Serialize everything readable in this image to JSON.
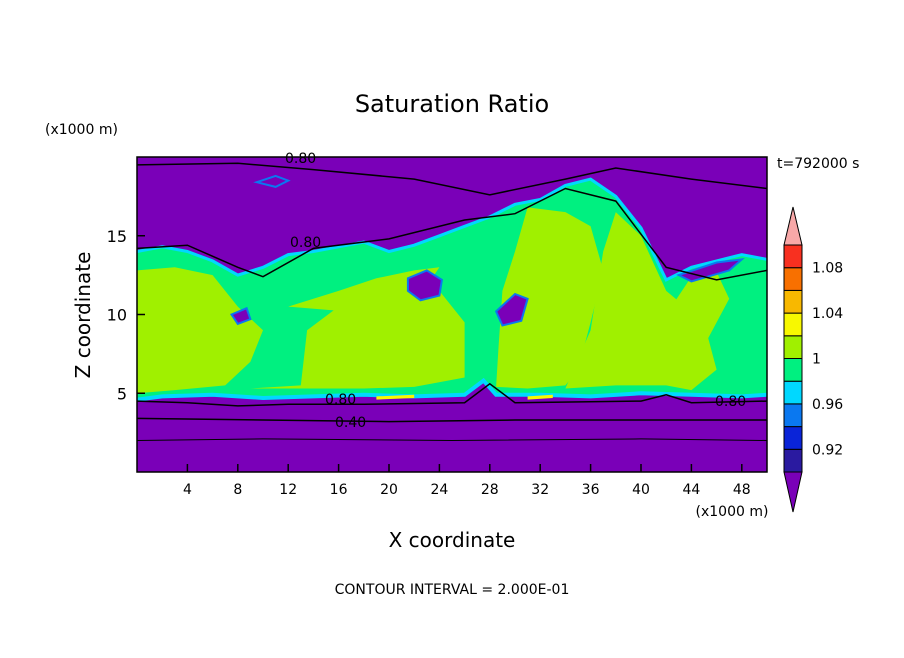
{
  "chart_data": {
    "type": "heatmap",
    "title": "Saturation Ratio",
    "xlabel": "X coordinate",
    "ylabel": "Z coordinate",
    "x_unit": "(x1000 m)",
    "y_unit": "(x1000 m)",
    "time_label": "t=792000 s",
    "footer": "CONTOUR INTERVAL = 2.000E-01",
    "xlim": [
      0,
      50
    ],
    "ylim": [
      0,
      20
    ],
    "x_ticks": [
      4,
      8,
      12,
      16,
      20,
      24,
      28,
      32,
      36,
      40,
      44,
      48
    ],
    "y_ticks": [
      5,
      10,
      15
    ],
    "contour_labels": [
      "0.80",
      "0.80",
      "0.80",
      "0.40",
      "0.80"
    ],
    "colorbar": {
      "tick_labels": [
        "1.08",
        "1.04",
        "1",
        "0.96",
        "0.92"
      ],
      "levels": [
        {
          "color": "#7a00b8"
        },
        {
          "color": "#2a1aa0"
        },
        {
          "color": "#0a24d8"
        },
        {
          "color": "#0a78f0"
        },
        {
          "color": "#00d8ff"
        },
        {
          "color": "#00f080"
        },
        {
          "color": "#a0f000"
        },
        {
          "color": "#f8f800"
        },
        {
          "color": "#f8b800"
        },
        {
          "color": "#f87000"
        },
        {
          "color": "#f83020"
        },
        {
          "color": "#f8a8a8"
        }
      ]
    }
  }
}
